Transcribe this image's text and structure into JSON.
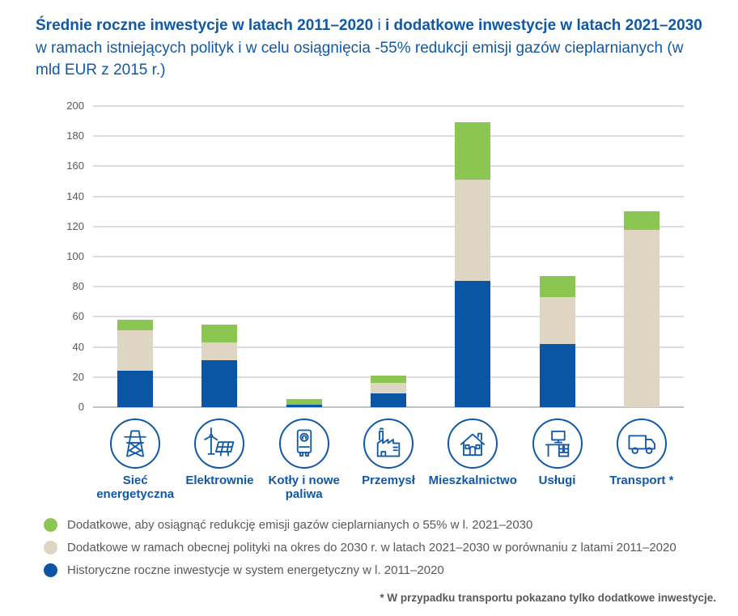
{
  "title": {
    "part1_bold": "Średnie roczne inwestycje w latach 2011–2020",
    "separator": " i ",
    "part2_bold": "i dodatkowe inwestycje w latach 2021–2030",
    "part3": " w ramach istniejących polityk i w celu osiągnięcia -55% redukcji emisji gazów cieplarnianych (w mld EUR z 2015 r.)"
  },
  "colors": {
    "title_blue": "#1058A8",
    "bar_blue": "#0B55A5",
    "bar_beige": "#DED6C3",
    "bar_green": "#8CC652",
    "grid": "#DCDCDC",
    "axis_line": "#C2C2C2",
    "text_gray": "#595959"
  },
  "chart_data": {
    "type": "bar",
    "stacked": true,
    "unit": "mld EUR z 2015 r.",
    "ylim": [
      0,
      200
    ],
    "yticks": [
      "0",
      "20",
      "40",
      "60",
      "80",
      "100",
      "120",
      "140",
      "160",
      "180",
      "200"
    ],
    "grid": true,
    "categories": [
      {
        "label": "Sieć energetyczna",
        "icon": "power-grid-icon"
      },
      {
        "label": "Elektrownie",
        "icon": "power-plant-icon"
      },
      {
        "label": "Kotły i nowe paliwa",
        "icon": "boiler-icon"
      },
      {
        "label": "Przemysł",
        "icon": "factory-icon"
      },
      {
        "label": "Mieszkalnictwo",
        "icon": "house-icon"
      },
      {
        "label": "Usługi",
        "icon": "services-icon"
      },
      {
        "label": "Transport *",
        "icon": "truck-icon"
      }
    ],
    "series": [
      {
        "key": "historic",
        "name": "Historyczne roczne inwestycje w system energetyczny w l. 2011–2020",
        "color": "#0B55A5",
        "values": [
          24,
          31,
          1.5,
          9,
          84,
          42,
          0
        ]
      },
      {
        "key": "current-policy",
        "name": "Dodatkowe w ramach obecnej polityki na okres do 2030 r. w latach 2021–2030 w porównaniu z latami 2011–2020",
        "color": "#DED6C3",
        "values": [
          27,
          12,
          0,
          7,
          67,
          31,
          118
        ]
      },
      {
        "key": "minus55",
        "name": "Dodatkowe, aby osiągnąć redukcję emisji gazów cieplarnianych o 55% w l. 2021–2030",
        "color": "#8CC652",
        "values": [
          7,
          12,
          4,
          5,
          38,
          14,
          12
        ]
      }
    ]
  },
  "legend": {
    "items": [
      {
        "key": "minus55",
        "color": "#8CC652",
        "label": "Dodatkowe, aby osiągnąć redukcję emisji gazów cieplarnianych o 55% w l. 2021–2030"
      },
      {
        "key": "current-policy",
        "color": "#DED6C3",
        "label": "Dodatkowe w ramach obecnej polityki na okres do 2030 r. w latach 2021–2030 w porównaniu z latami 2011–2020"
      },
      {
        "key": "historic",
        "color": "#0B55A5",
        "label": "Historyczne roczne inwestycje w system energetyczny w l. 2011–2020"
      }
    ]
  },
  "footnote": "* W przypadku transportu pokazano tylko dodatkowe inwestycje."
}
